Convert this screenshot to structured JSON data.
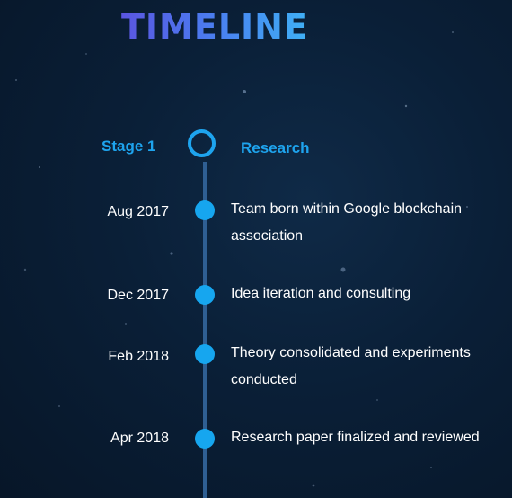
{
  "title": "TIMELINE",
  "stage": {
    "label": "Stage 1",
    "name": "Research"
  },
  "events": [
    {
      "date": "Aug 2017",
      "text": "Team born within Google blockchain association"
    },
    {
      "date": "Dec 2017",
      "text": "Idea iteration and consulting"
    },
    {
      "date": "Feb 2018",
      "text": "Theory consolidated and experiments conducted"
    },
    {
      "date": "Apr 2018",
      "text": "Research paper finalized and reviewed"
    }
  ],
  "colors": {
    "accent": "#1ea4ee",
    "line": "#2f5f93",
    "background": "#0a1f37"
  }
}
